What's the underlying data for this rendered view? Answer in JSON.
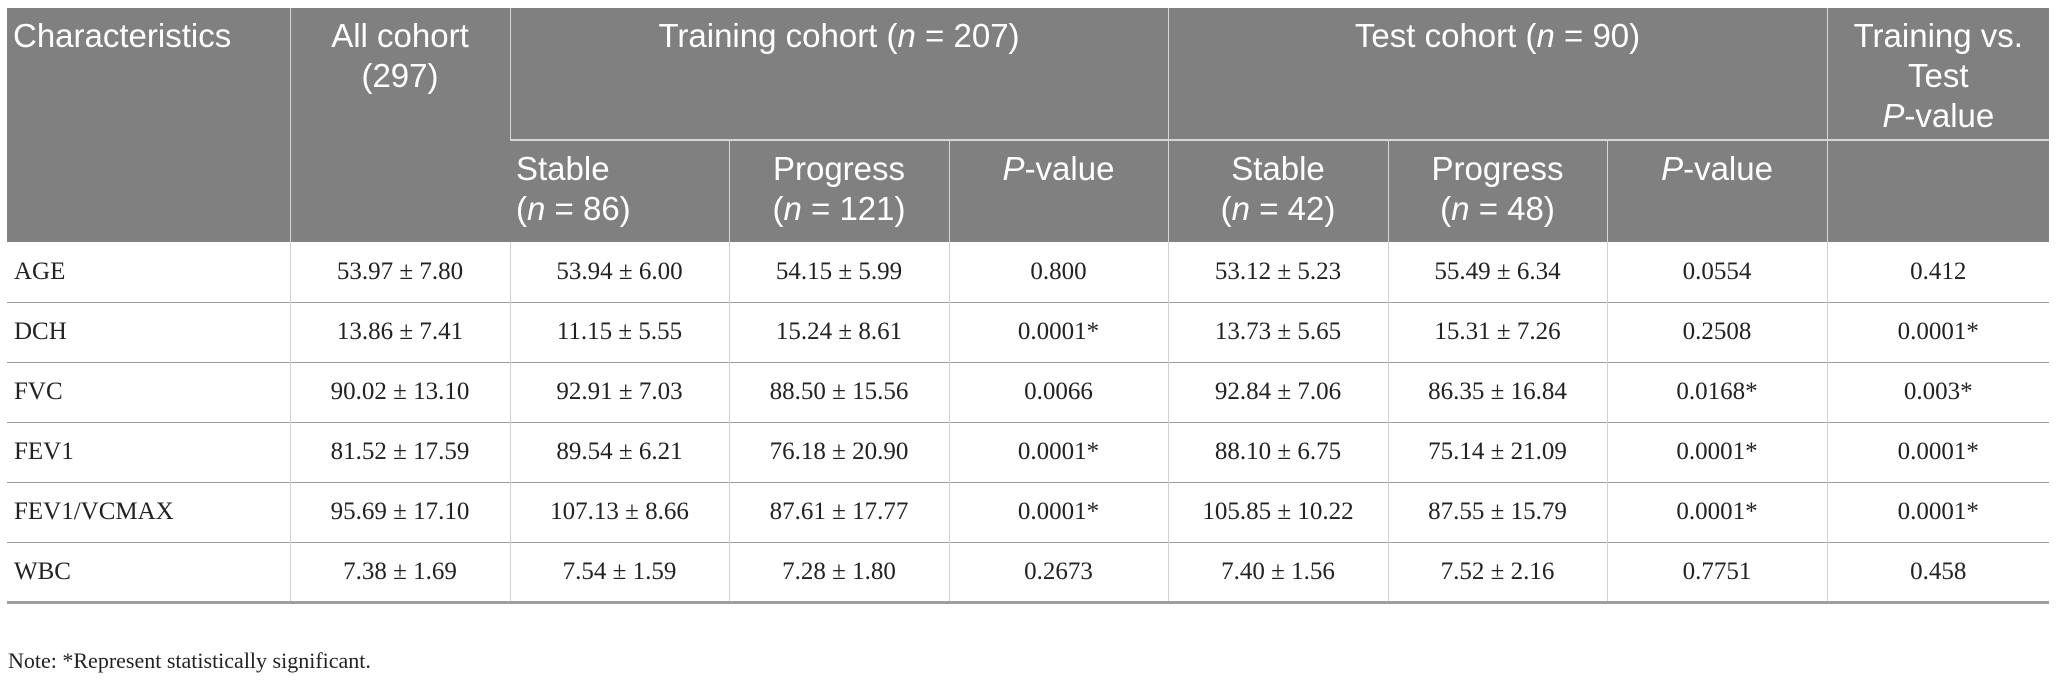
{
  "header": {
    "characteristics": "Characteristics",
    "all_cohort_line1": "All cohort",
    "all_cohort_line2": "(297)",
    "training_pre": "Training cohort (",
    "training_n": "n",
    "training_post": " = 207)",
    "test_pre": "Test cohort (",
    "test_n": "n",
    "test_post": " = 90)",
    "tvt_line1": "Training vs.",
    "tvt_line2": "Test",
    "tvt_p": "P",
    "tvt_value": "-value",
    "stable": "Stable",
    "progress": "Progress",
    "n_open": "(",
    "n_letter": "n",
    "train_stable_n": " = 86)",
    "train_progress_n": " = 121)",
    "test_stable_n": " = 42)",
    "test_progress_n": " = 48)",
    "p_letter": "P",
    "p_value_suffix": "-value"
  },
  "rows": [
    {
      "label": "AGE",
      "cells": [
        "53.97 ± 7.80",
        "53.94 ± 6.00",
        "54.15 ± 5.99",
        "0.800",
        "53.12 ± 5.23",
        "55.49 ± 6.34",
        "0.0554",
        "0.412"
      ]
    },
    {
      "label": "DCH",
      "cells": [
        "13.86 ± 7.41",
        "11.15 ± 5.55",
        "15.24 ± 8.61",
        "0.0001*",
        "13.73 ± 5.65",
        "15.31 ± 7.26",
        "0.2508",
        "0.0001*"
      ]
    },
    {
      "label": "FVC",
      "cells": [
        "90.02 ± 13.10",
        "92.91 ± 7.03",
        "88.50 ± 15.56",
        "0.0066",
        "92.84 ± 7.06",
        "86.35 ± 16.84",
        "0.0168*",
        "0.003*"
      ]
    },
    {
      "label": "FEV1",
      "cells": [
        "81.52 ± 17.59",
        "89.54 ± 6.21",
        "76.18 ± 20.90",
        "0.0001*",
        "88.10 ± 6.75",
        "75.14 ± 21.09",
        "0.0001*",
        "0.0001*"
      ]
    },
    {
      "label": "FEV1/VCMAX",
      "cells": [
        "95.69 ± 17.10",
        "107.13 ± 8.66",
        "87.61 ± 17.77",
        "0.0001*",
        "105.85 ± 10.22",
        "87.55 ± 15.79",
        "0.0001*",
        "0.0001*"
      ]
    },
    {
      "label": "WBC",
      "cells": [
        "7.38 ± 1.69",
        "7.54 ± 1.59",
        "7.28 ± 1.80",
        "0.2673",
        "7.40 ± 1.56",
        "7.52 ± 2.16",
        "0.7751",
        "0.458"
      ]
    }
  ],
  "note": "Note: *Represent statistically significant.",
  "colors": {
    "header_bg": "#808080",
    "header_text": "#ffffff",
    "body_text": "#222222"
  }
}
